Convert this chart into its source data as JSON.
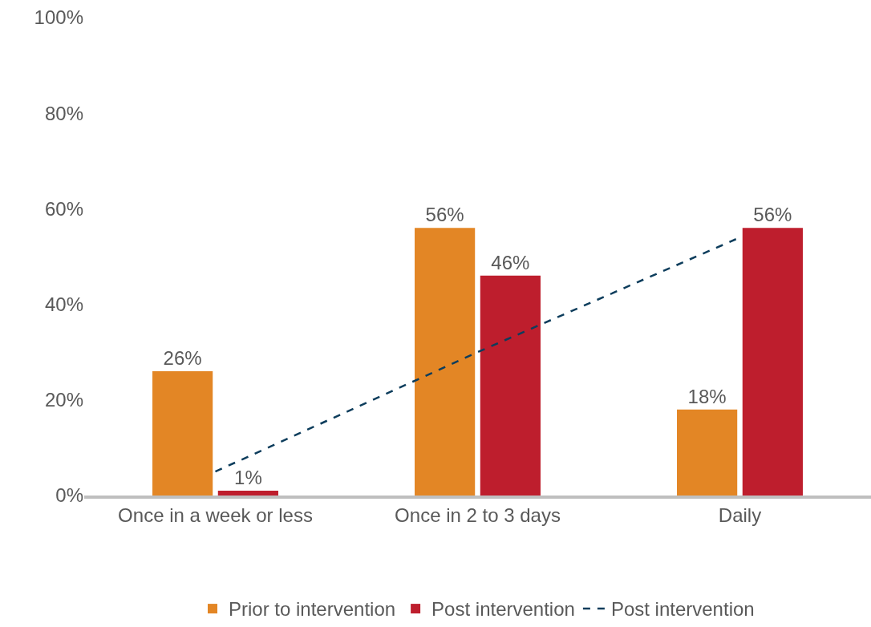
{
  "chart_data": {
    "type": "bar",
    "categories": [
      "Once in a week or less",
      "Once in 2 to 3 days",
      "Daily"
    ],
    "series": [
      {
        "name": "Prior to intervention",
        "color": "#e38625",
        "values": [
          26,
          56,
          18
        ],
        "value_labels": [
          "26%",
          "56%",
          "18%"
        ]
      },
      {
        "name": "Post intervention",
        "color": "#be1e2d",
        "values": [
          1,
          46,
          56
        ],
        "value_labels": [
          "1%",
          "46%",
          "56%"
        ]
      },
      {
        "name": "Post intervention",
        "type": "line",
        "color": "#0d3d5c",
        "line_style": "dashed",
        "marker": "none",
        "values": [
          5,
          30,
          54
        ]
      }
    ],
    "ylim": [
      0,
      100
    ],
    "yticks": [
      {
        "value": 0,
        "label": "0%"
      },
      {
        "value": 20,
        "label": "20%"
      },
      {
        "value": 40,
        "label": "40%"
      },
      {
        "value": 60,
        "label": "60%"
      },
      {
        "value": 80,
        "label": "80%"
      },
      {
        "value": 100,
        "label": "100%"
      }
    ],
    "grid": false,
    "legend": "bottom"
  }
}
